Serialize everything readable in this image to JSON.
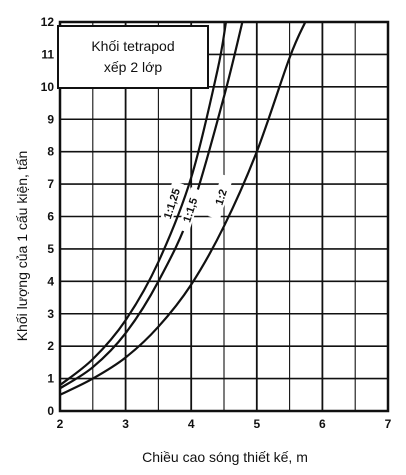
{
  "chart_data": {
    "type": "line",
    "title": "",
    "xlabel": "Chiều cao sóng thiết kế, m",
    "ylabel": "Khối lượng của 1 cấu kiện, tấn",
    "xlim": [
      2,
      7
    ],
    "ylim": [
      0,
      12
    ],
    "x_ticks": [
      "2",
      "3",
      "4",
      "5",
      "6",
      "7"
    ],
    "y_ticks": [
      "0",
      "1",
      "2",
      "3",
      "4",
      "5",
      "6",
      "7",
      "8",
      "9",
      "10",
      "11",
      "12"
    ],
    "grid": true,
    "annotation": {
      "line1": "Khối tetrapod",
      "line2": "xếp 2 lớp"
    },
    "series": [
      {
        "name": "1:1,25",
        "x": [
          2.0,
          2.5,
          3.0,
          3.5,
          4.0,
          4.4,
          4.53
        ],
        "y": [
          0.8,
          1.6,
          2.8,
          4.6,
          7.2,
          10.5,
          12.0
        ]
      },
      {
        "name": "1:1,5",
        "x": [
          2.0,
          2.5,
          3.0,
          3.5,
          4.0,
          4.5,
          4.78
        ],
        "y": [
          0.7,
          1.35,
          2.4,
          4.0,
          6.2,
          9.7,
          12.0
        ]
      },
      {
        "name": "1:2",
        "x": [
          2.0,
          2.5,
          3.0,
          3.5,
          4.0,
          4.5,
          5.0,
          5.5,
          5.74
        ],
        "y": [
          0.5,
          1.0,
          1.65,
          2.6,
          3.9,
          5.7,
          8.0,
          10.9,
          12.0
        ]
      }
    ]
  }
}
